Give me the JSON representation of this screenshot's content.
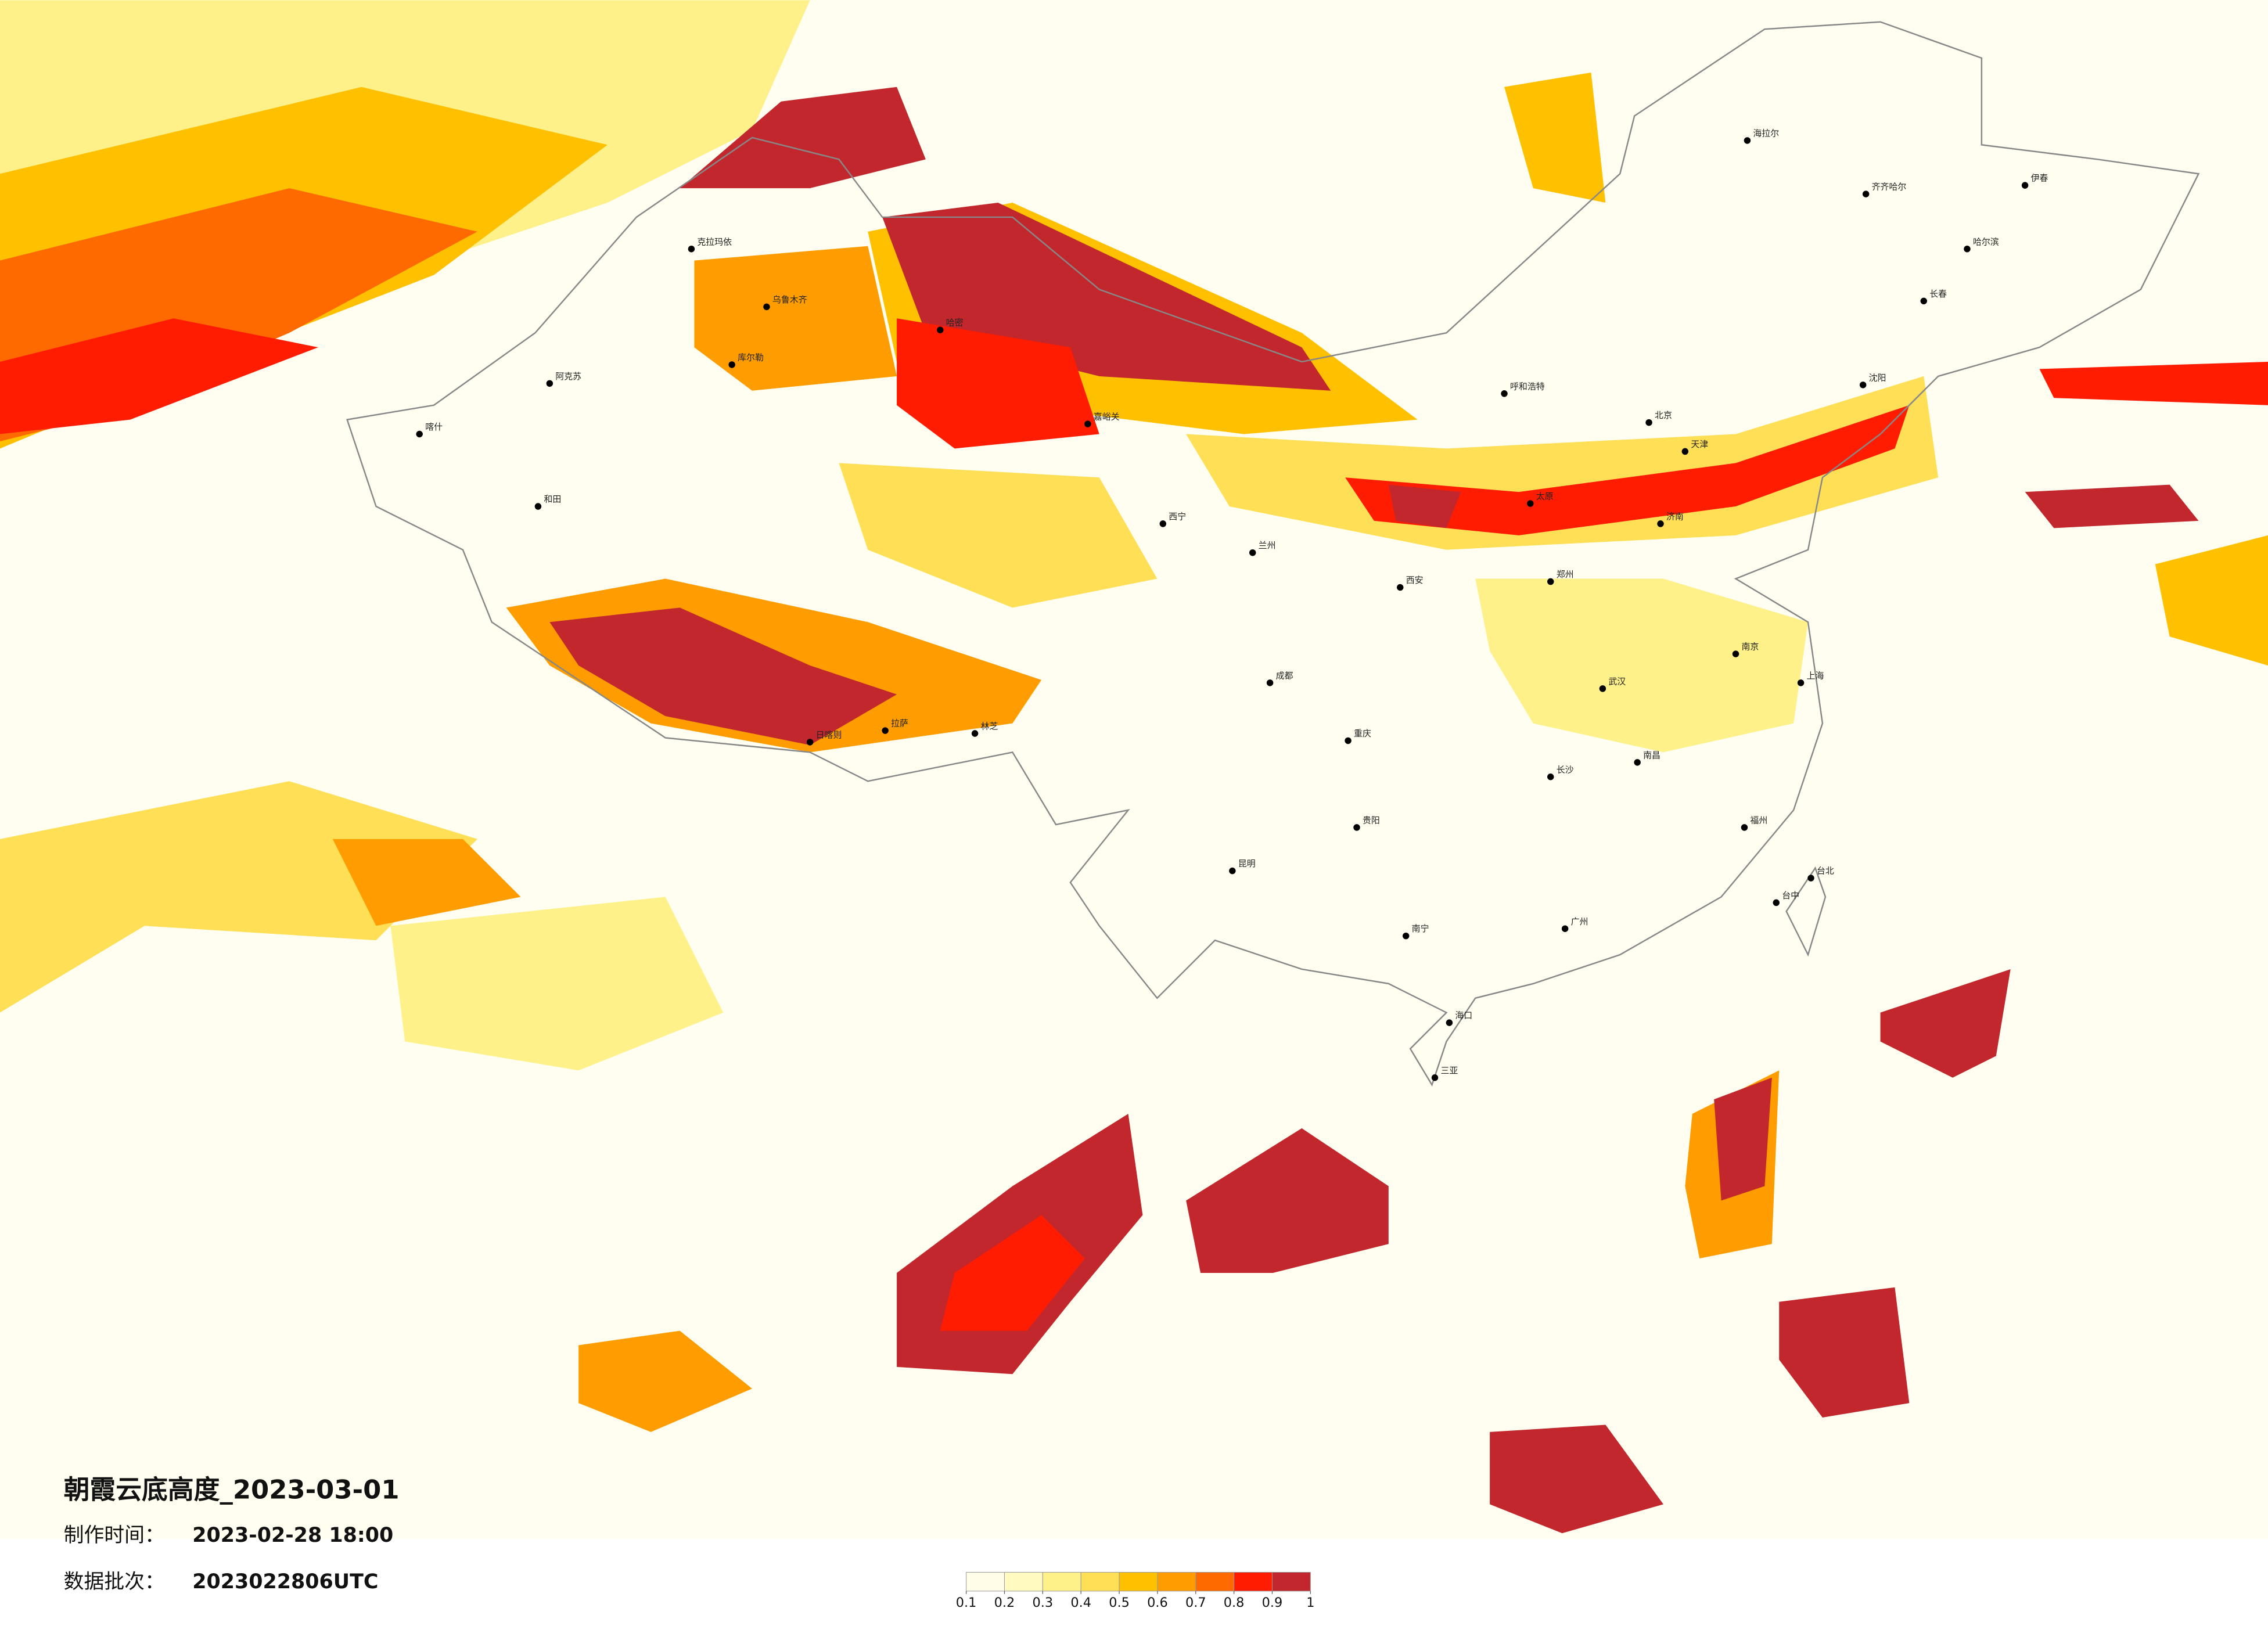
{
  "title": "朝霞云底高度_2023-03-01",
  "made_label": "制作时间：",
  "made_time": "2023-02-28 18:00",
  "batch_label": "数据批次：",
  "batch": "2023022806UTC",
  "colorbar": {
    "colors": [
      "#fffde8",
      "#fffbc0",
      "#fff18a",
      "#ffdf55",
      "#ffc000",
      "#ff9c00",
      "#ff6a00",
      "#ff1c00",
      "#c1272d"
    ],
    "ticks": [
      0.1,
      0.2,
      0.3,
      0.4,
      0.5,
      0.6,
      0.7,
      0.8,
      0.9,
      1
    ]
  },
  "cities": [
    "克拉玛依",
    "乌鲁木齐",
    "库尔勒",
    "阿克苏",
    "喀什",
    "和田",
    "哈密",
    "嘉峪关",
    "西宁",
    "兰州",
    "拉萨",
    "日喀则",
    "林芝",
    "呼和浩特",
    "北京",
    "天津",
    "沈阳",
    "长春",
    "哈尔滨",
    "齐齐哈尔",
    "海拉尔",
    "伊春",
    "太原",
    "济南",
    "郑州",
    "西安",
    "武汉",
    "南京",
    "上海",
    "成都",
    "重庆",
    "贵阳",
    "昆明",
    "长沙",
    "南昌",
    "福州",
    "广州",
    "南宁",
    "海口",
    "台北",
    "台中",
    "三亚"
  ]
}
